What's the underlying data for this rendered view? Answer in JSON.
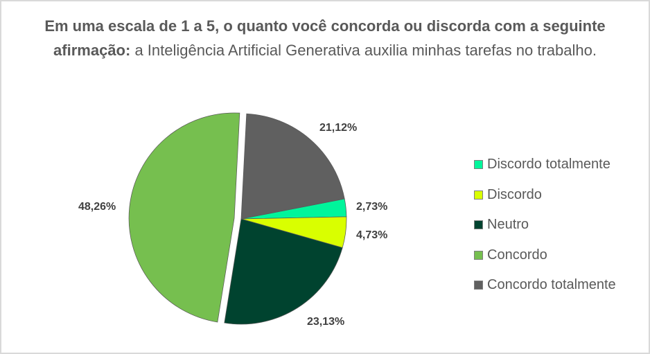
{
  "title": {
    "bold_part": "Em uma escala de 1 a 5, o quanto você concorda ou discorda com a seguinte afirmação:",
    "regular_part": "a Inteligência Artificial Generativa auxilia minhas tarefas no trabalho."
  },
  "chart_data": {
    "type": "pie",
    "title": "Em uma escala de 1 a 5, o quanto você concorda ou discorda com a seguinte afirmação: a Inteligência Artificial Generativa auxilia minhas tarefas no trabalho.",
    "categories": [
      "Discordo totalmente",
      "Discordo",
      "Neutro",
      "Concordo",
      "Concordo totalmente"
    ],
    "values": [
      2.73,
      4.73,
      23.13,
      48.26,
      21.12
    ],
    "labels": [
      "2,73%",
      "4,73%",
      "23,13%",
      "48,26%",
      "21,12%"
    ],
    "colors": [
      "#00f59b",
      "#d9ff00",
      "#00432f",
      "#76bf4f",
      "#606060"
    ],
    "exploded": "Concordo",
    "legend_position": "right"
  },
  "legend": [
    {
      "label": "Discordo totalmente",
      "color": "#00f59b"
    },
    {
      "label": "Discordo",
      "color": "#d9ff00"
    },
    {
      "label": "Neutro",
      "color": "#00432f"
    },
    {
      "label": "Concordo",
      "color": "#76bf4f"
    },
    {
      "label": "Concordo totalmente",
      "color": "#606060"
    }
  ]
}
